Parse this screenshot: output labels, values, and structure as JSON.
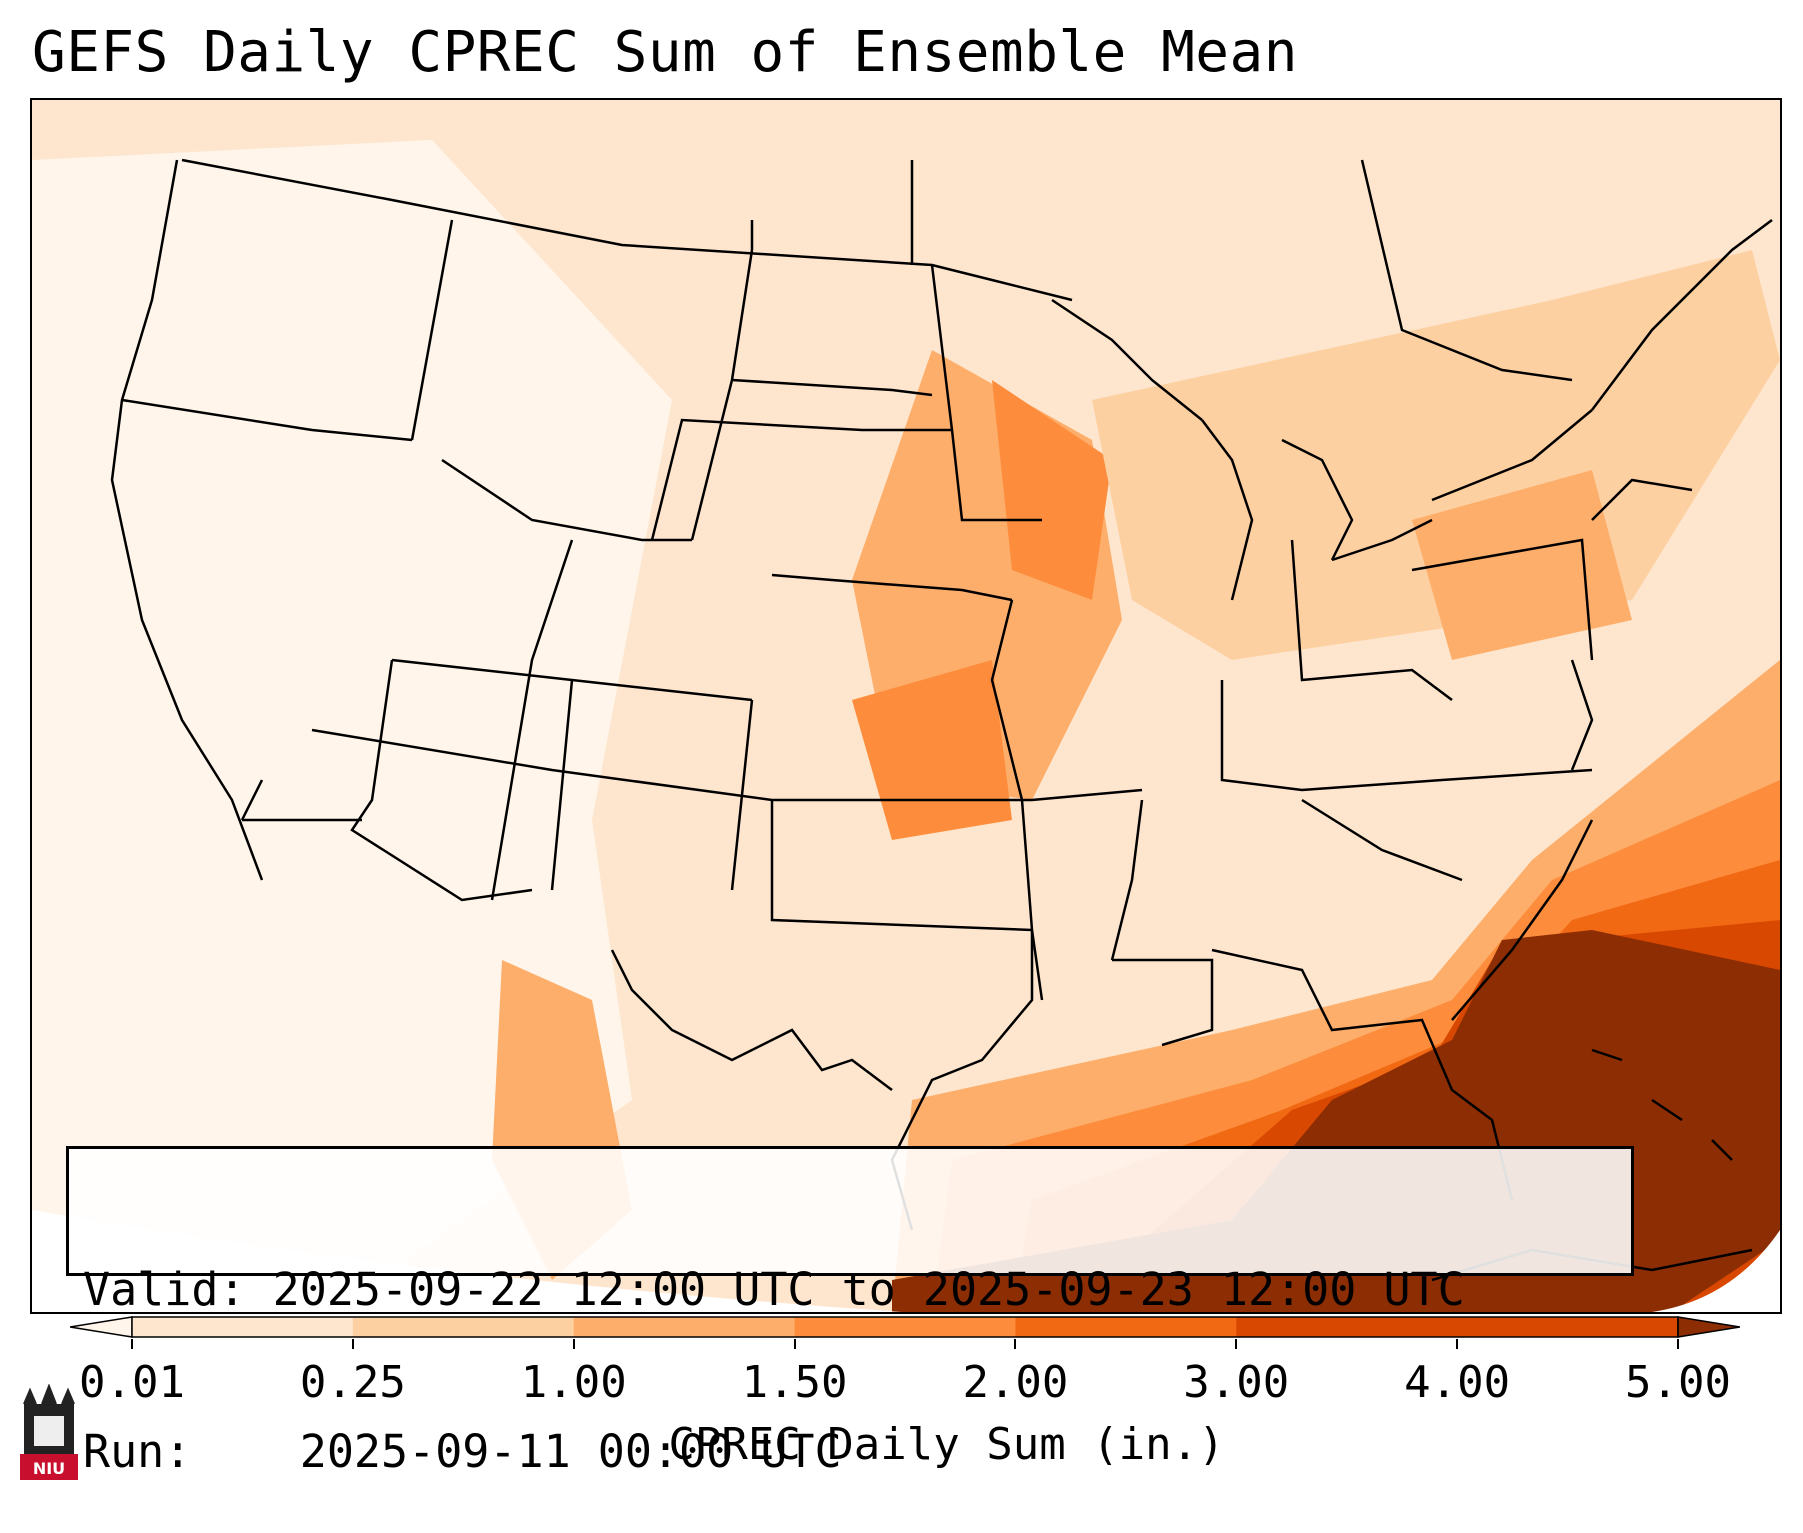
{
  "title": "GEFS Daily CPREC Sum of Ensemble Mean",
  "info": {
    "valid_label": "Valid:",
    "valid_value": "2025-09-22 12:00 UTC to 2025-09-23 12:00 UTC",
    "run_label": "Run:",
    "run_value": "2025-09-11 00:00 UTC"
  },
  "colorbar": {
    "label": "CPREC Daily Sum (in.)",
    "ticks": [
      "0.01",
      "0.25",
      "1.00",
      "1.50",
      "2.00",
      "3.00",
      "4.00",
      "5.00"
    ],
    "colors": [
      "#fff5eb",
      "#fee6ce",
      "#fdd0a2",
      "#fdae6b",
      "#fd8d3c",
      "#f16913",
      "#d94801",
      "#8c2d04"
    ],
    "extend": "both"
  },
  "logo_text": "NIU",
  "colors": {
    "min": "#fff5eb",
    "low": "#fee6ce",
    "mid": "#fdae6b",
    "high": "#f16913",
    "max": "#8c2d04",
    "border": "#000000"
  }
}
